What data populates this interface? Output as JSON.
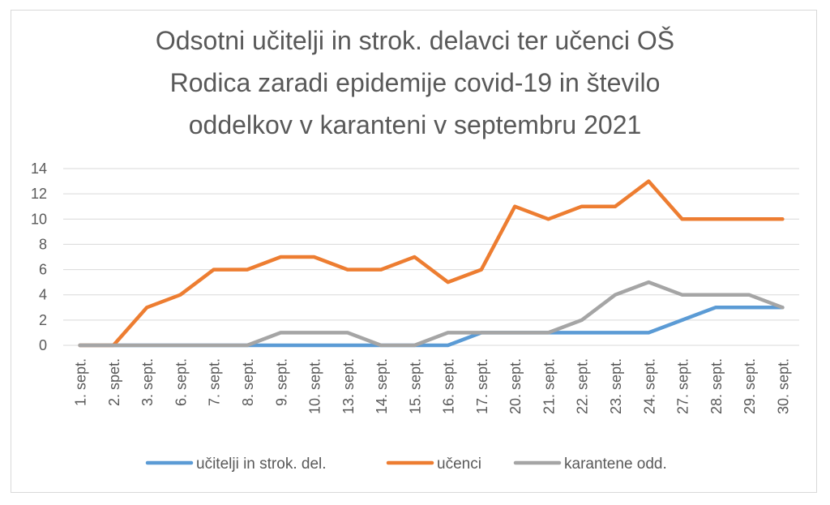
{
  "chart_data": {
    "type": "line",
    "title_lines": [
      "Odsotni učitelji in strok. delavci ter učenci OŠ",
      "Rodica zaradi epidemije covid-19 in število",
      "oddelkov v karanteni v septembru 2021"
    ],
    "categories": [
      "1. sept.",
      "2. spet.",
      "3. sept.",
      "6. sept.",
      "7. sept.",
      "8. sept.",
      "9. sept.",
      "10. sept.",
      "13. sept.",
      "14. sept.",
      "15. sept.",
      "16. sept.",
      "17. sept.",
      "20. sept.",
      "21. sept.",
      "22. sept.",
      "23. sept.",
      "24. sept.",
      "27. sept.",
      "28. sept.",
      "29. sept.",
      "30. sept."
    ],
    "ylim": [
      0,
      14
    ],
    "yticks": [
      0,
      2,
      4,
      6,
      8,
      10,
      12,
      14
    ],
    "grid": true,
    "legend_position": "bottom",
    "series": [
      {
        "name": "učitelji in strok. del.",
        "color": "#5b9bd5",
        "values": [
          0,
          0,
          0,
          0,
          0,
          0,
          0,
          0,
          0,
          0,
          0,
          0,
          1,
          1,
          1,
          1,
          1,
          1,
          2,
          3,
          3,
          3
        ]
      },
      {
        "name": "učenci",
        "color": "#ed7d31",
        "values": [
          0,
          0,
          3,
          4,
          6,
          6,
          7,
          7,
          6,
          6,
          7,
          5,
          6,
          11,
          10,
          11,
          11,
          13,
          10,
          10,
          10,
          10
        ]
      },
      {
        "name": "karantene odd.",
        "color": "#a5a5a5",
        "values": [
          0,
          0,
          0,
          0,
          0,
          0,
          1,
          1,
          1,
          0,
          0,
          1,
          1,
          1,
          1,
          2,
          4,
          5,
          4,
          4,
          4,
          3
        ]
      }
    ]
  }
}
